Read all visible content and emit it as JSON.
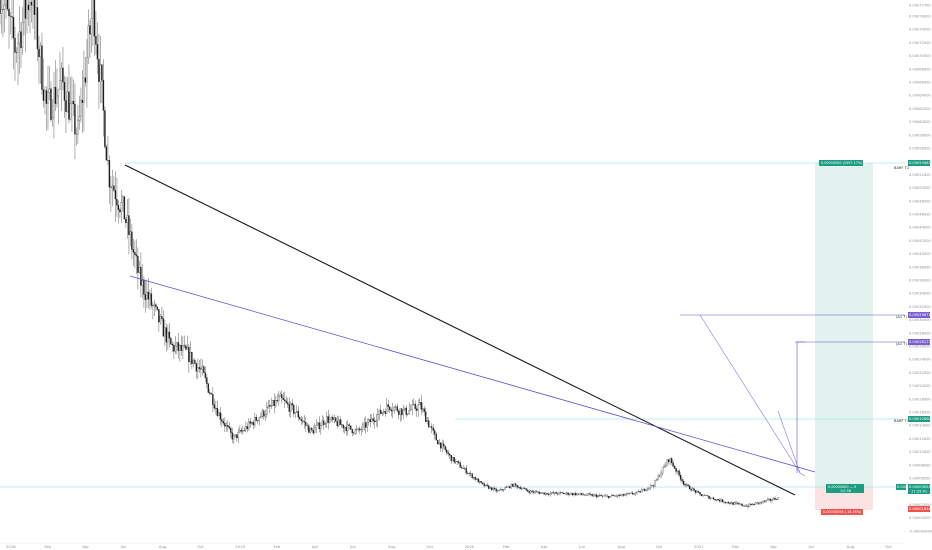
{
  "chart_data": {
    "type": "candlestick",
    "title": "",
    "xlabel": "",
    "ylabel": "",
    "x_ticks": [
      "2018",
      "Feb",
      "Apr",
      "Jun",
      "Aug",
      "Oct",
      "2019",
      "Feb",
      "Apr",
      "Jun",
      "Aug",
      "Oct",
      "2020",
      "Feb",
      "Apr",
      "Jun",
      "Aug",
      "Oct",
      "2021",
      "Feb",
      "Apr",
      "Jun",
      "Aug",
      "Oct"
    ],
    "y_ticks": [
      "0.00077700",
      "0.00076000",
      "0.00074000",
      "0.00072000",
      "0.00070000",
      "0.00068000",
      "0.00066000",
      "0.00064000",
      "0.00062000",
      "0.00060000",
      "0.00058000",
      "0.00056000",
      "0.00054000",
      "0.00052000",
      "0.00050000",
      "0.00048000",
      "0.00046000",
      "0.00044000",
      "0.00042000",
      "0.00040000",
      "0.00038000",
      "0.00036000",
      "0.00034000",
      "0.00032000",
      "0.00030000",
      "0.00028000",
      "0.00026000",
      "0.00024000",
      "0.00022000",
      "0.00020000",
      "0.00018000",
      "0.00016000",
      "0.00014000",
      "0.00012000",
      "0.00010000",
      "0.00008000",
      "0.00006000",
      "0.00004000",
      "0.00002000",
      "0.00000000",
      "-0.00002000"
    ],
    "price_series_close": [
      0.0008,
      0.00071,
      0.0008,
      0.00062,
      0.00066,
      0.00058,
      0.00078,
      0.00052,
      0.00046,
      0.00036,
      0.00031,
      0.00026,
      0.00025,
      0.00022,
      0.00016,
      0.00012,
      0.00014,
      0.00016,
      0.00018,
      0.00016,
      0.00013,
      0.00015,
      0.00014,
      0.00013,
      0.00015,
      0.00017,
      0.00016,
      0.00017,
      0.00012,
      9e-05,
      7e-05,
      5e-05,
      4e-05,
      5e-05,
      4e-05,
      3.7e-05,
      3.7e-05,
      3.6e-05,
      3.4e-05,
      3.2e-05,
      3.4e-05,
      3.8e-05,
      5e-05,
      9e-05,
      5e-05,
      3.5e-05,
      2.8e-05,
      2.2e-05,
      1.8e-05,
      2.4e-05,
      3e-05
    ],
    "levels": [
      {
        "label": "BARF T2",
        "price_label": "0.00053483",
        "value": 0.000535,
        "color": "#26a69a"
      },
      {
        "label": "(A1 T)",
        "price_label": "0.00029671",
        "value": 0.000297,
        "color": "#7e57c2"
      },
      {
        "label": "(A1 T)",
        "price_label": "0.00028177",
        "value": 0.00028,
        "color": "#7e57c2"
      },
      {
        "label": "BARF T1",
        "price_label": "0.00012600",
        "value": 0.000126,
        "color": "#26a69a"
      },
      {
        "label": "",
        "price_label": "0.00003051",
        "value": 3.05e-05,
        "color": "#26a69a"
      }
    ],
    "current_price": {
      "label": "0.00003051",
      "sub": "17:35:41",
      "value": 3.05e-05
    },
    "stop_price": {
      "label": "0.00001854",
      "value": 1.85e-05
    },
    "target_box": {
      "text": "0.00050500 (1597.17%) 4",
      "value": 0.000535
    },
    "entry_box": {
      "text": "0.00000000 — 0",
      "sub": "1:0.36"
    },
    "stop_box": {
      "text": "0.00000556 (-18.76%) 4"
    },
    "colors": {
      "candle": "#1b1b1b",
      "trendline_black": "#1a1a1a",
      "trendline_purple": "#5b52c9",
      "target_zone": "#e2f2ef",
      "stop_zone": "#fbe3e3",
      "green_label": "#1e9c82",
      "red_label": "#ef5350",
      "purple_label": "#7b5fd2",
      "level_line": "#8fd6e6"
    },
    "grid": false
  }
}
